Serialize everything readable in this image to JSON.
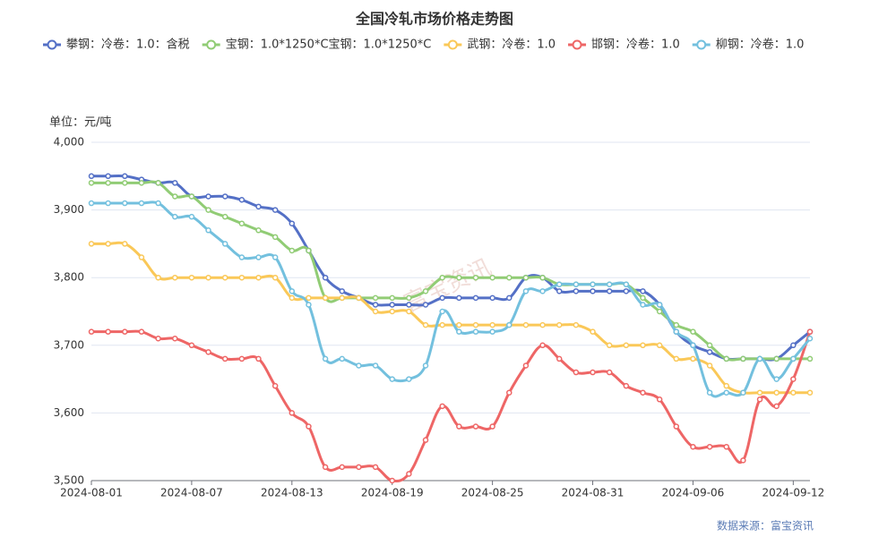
{
  "chart_data": {
    "type": "line",
    "title": "全国冷轧市场价格走势图",
    "y_axis_label": "单位：元/吨",
    "source": "数据来源：富宝资讯",
    "watermark": "富宝资讯",
    "categories": [
      "2024-08-01",
      null,
      null,
      null,
      null,
      null,
      "2024-08-07",
      null,
      null,
      null,
      null,
      null,
      "2024-08-13",
      null,
      null,
      null,
      null,
      null,
      "2024-08-19",
      null,
      null,
      null,
      null,
      null,
      "2024-08-25",
      null,
      null,
      null,
      null,
      null,
      "2024-08-31",
      null,
      null,
      null,
      null,
      null,
      "2024-09-06",
      null,
      null,
      null,
      null,
      null,
      "2024-09-12",
      null
    ],
    "ylim": [
      3500,
      4000
    ],
    "yticks": [
      {
        "value": 3500,
        "label": "3,500"
      },
      {
        "value": 3600,
        "label": "3,600"
      },
      {
        "value": 3700,
        "label": "3,700"
      },
      {
        "value": 3800,
        "label": "3,800"
      },
      {
        "value": 3900,
        "label": "3,900"
      },
      {
        "value": 4000,
        "label": "4,000"
      }
    ],
    "grid": true,
    "smooth": true,
    "legend": "top",
    "series": [
      {
        "name": "攀钢：冷卷：1.0：含税",
        "color": "#5470c6",
        "values": [
          3950,
          3950,
          3950,
          3945,
          3940,
          3940,
          3920,
          3920,
          3920,
          3915,
          3905,
          3900,
          3880,
          3840,
          3800,
          3780,
          3770,
          3760,
          3760,
          3760,
          3760,
          3770,
          3770,
          3770,
          3770,
          3770,
          3800,
          3800,
          3780,
          3780,
          3780,
          3780,
          3780,
          3780,
          3760,
          3720,
          3700,
          3690,
          3680,
          3680,
          3680,
          3680,
          3700,
          3720
        ]
      },
      {
        "name": "宝钢：1.0*1250*C宝钢：1.0*1250*C",
        "color": "#91cc75",
        "values": [
          3940,
          3940,
          3940,
          3940,
          3940,
          3920,
          3920,
          3900,
          3890,
          3880,
          3870,
          3860,
          3840,
          3840,
          3770,
          3770,
          3770,
          3770,
          3770,
          3770,
          3780,
          3800,
          3800,
          3800,
          3800,
          3800,
          3800,
          3800,
          3790,
          3790,
          3790,
          3790,
          3790,
          3770,
          3750,
          3730,
          3720,
          3700,
          3680,
          3680,
          3680,
          3680,
          3680,
          3680
        ]
      },
      {
        "name": "武钢：冷卷：1.0",
        "color": "#fac858",
        "values": [
          3850,
          3850,
          3850,
          3830,
          3800,
          3800,
          3800,
          3800,
          3800,
          3800,
          3800,
          3800,
          3770,
          3770,
          3770,
          3770,
          3770,
          3750,
          3750,
          3750,
          3730,
          3730,
          3730,
          3730,
          3730,
          3730,
          3730,
          3730,
          3730,
          3730,
          3720,
          3700,
          3700,
          3700,
          3700,
          3680,
          3680,
          3670,
          3640,
          3630,
          3630,
          3630,
          3630,
          3630
        ]
      },
      {
        "name": "邯钢：冷卷：1.0",
        "color": "#ee6666",
        "values": [
          3720,
          3720,
          3720,
          3720,
          3710,
          3710,
          3700,
          3690,
          3680,
          3680,
          3680,
          3640,
          3600,
          3580,
          3520,
          3520,
          3520,
          3520,
          3500,
          3510,
          3560,
          3610,
          3580,
          3580,
          3580,
          3630,
          3670,
          3700,
          3680,
          3660,
          3660,
          3660,
          3640,
          3630,
          3620,
          3580,
          3550,
          3550,
          3550,
          3530,
          3620,
          3610,
          3650,
          3720
        ]
      },
      {
        "name": "柳钢：冷卷：1.0",
        "color": "#73c0de",
        "values": [
          3910,
          3910,
          3910,
          3910,
          3910,
          3890,
          3890,
          3870,
          3850,
          3830,
          3830,
          3830,
          3780,
          3760,
          3680,
          3680,
          3670,
          3670,
          3650,
          3650,
          3670,
          3750,
          3720,
          3720,
          3720,
          3730,
          3780,
          3780,
          3790,
          3790,
          3790,
          3790,
          3790,
          3760,
          3760,
          3720,
          3700,
          3630,
          3630,
          3630,
          3680,
          3650,
          3680,
          3710
        ]
      }
    ]
  }
}
